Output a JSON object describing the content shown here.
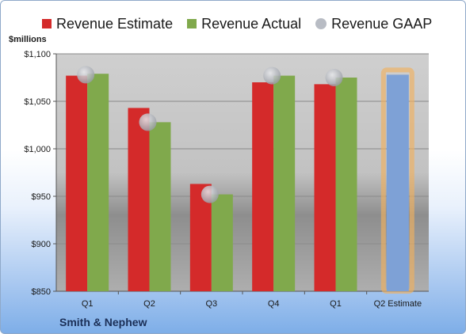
{
  "company": "Smith & Nephew",
  "unit_label": "$millions",
  "legend": [
    {
      "label": "Revenue Estimate",
      "color": "#d42a2a",
      "shape": "square"
    },
    {
      "label": "Revenue Actual",
      "color": "#80a94c",
      "shape": "square"
    },
    {
      "label": "Revenue GAAP",
      "color": "#b8bcc4",
      "shape": "circle"
    }
  ],
  "chart_data": {
    "type": "bar",
    "title": "",
    "xlabel": "",
    "ylabel": "$millions",
    "ylim": [
      850,
      1100
    ],
    "yticks": [
      850,
      900,
      950,
      1000,
      1050,
      1100
    ],
    "ytick_labels": [
      "$850",
      "$900",
      "$950",
      "$1,000",
      "$1,050",
      "$1,100"
    ],
    "categories": [
      "Q1",
      "Q2",
      "Q3",
      "Q4",
      "Q1",
      "Q2 Estimate"
    ],
    "series": [
      {
        "name": "Revenue Estimate",
        "color": "#d42a2a",
        "values": [
          1077,
          1043,
          963,
          1070,
          1068,
          null
        ]
      },
      {
        "name": "Revenue Actual",
        "color": "#80a94c",
        "values": [
          1079,
          1028,
          952,
          1077,
          1075,
          null
        ]
      },
      {
        "name": "Revenue GAAP",
        "color": "#b8bcc4",
        "type": "scatter",
        "values": [
          1078,
          1028,
          952,
          1077,
          1075,
          null
        ]
      },
      {
        "name": "Q2 Estimate",
        "color": "#7ea1d6",
        "highlight": "#f0b060",
        "values": [
          null,
          null,
          null,
          null,
          null,
          1078
        ]
      }
    ],
    "grid": true,
    "legend_position": "top"
  }
}
